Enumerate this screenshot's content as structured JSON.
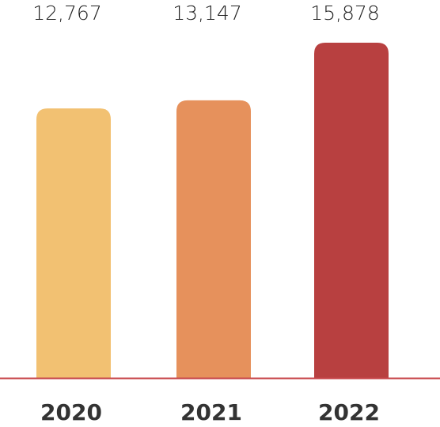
{
  "chart_data": {
    "type": "bar",
    "categories": [
      "2020",
      "2021",
      "2022"
    ],
    "values": [
      12767,
      13147,
      15878
    ],
    "value_labels": [
      "12,767",
      "13,147",
      "15,878"
    ],
    "colors": [
      "#f2c172",
      "#e6915c",
      "#b84040"
    ]
  }
}
